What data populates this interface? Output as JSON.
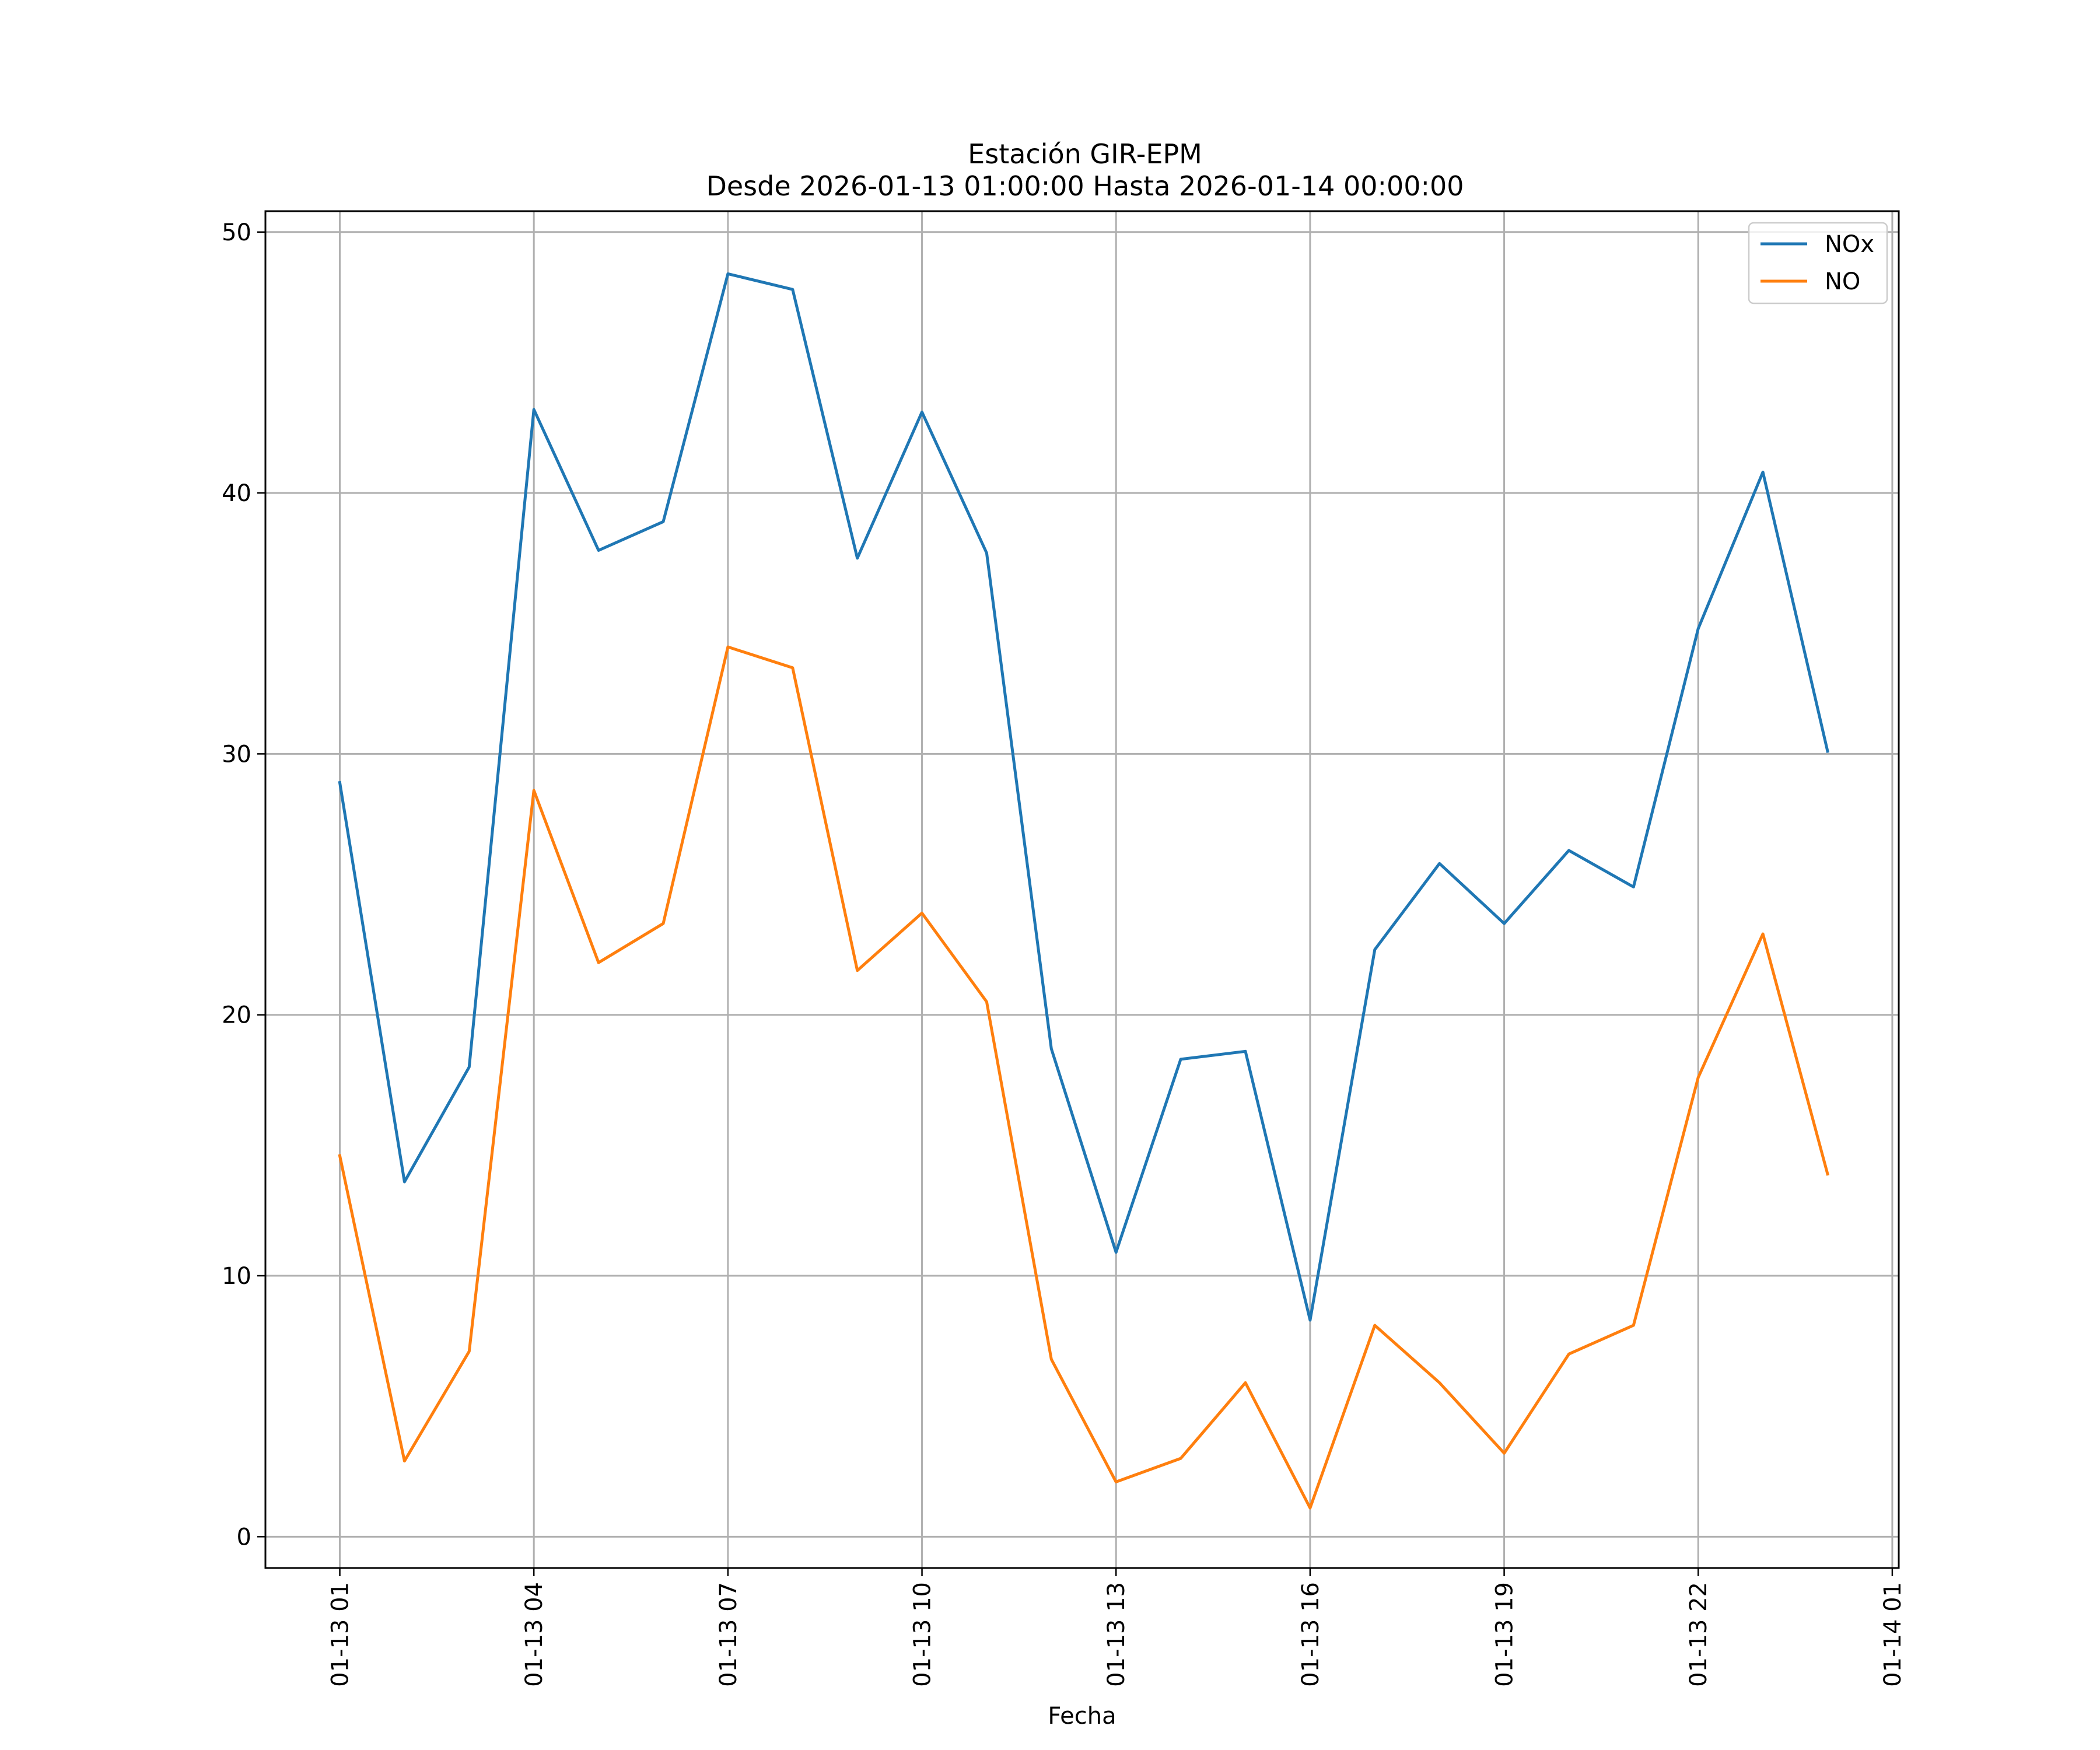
{
  "chart_data": {
    "type": "line",
    "title": "Estación GIR-EPM",
    "subtitle": "Desde 2026-01-13 01:00:00 Hasta 2026-01-14 00:00:00",
    "xlabel": "Fecha",
    "ylabel": "",
    "grid": true,
    "legend_position": "top-right",
    "x_hours": [
      1,
      2,
      3,
      4,
      5,
      6,
      7,
      8,
      9,
      10,
      11,
      12,
      13,
      14,
      15,
      16,
      17,
      18,
      19,
      20,
      21,
      22,
      23,
      24
    ],
    "xlim": [
      -0.15,
      25.1
    ],
    "ylim": [
      -1.2,
      50.8
    ],
    "xticks": [
      {
        "hour": 1,
        "label": "01-13 01"
      },
      {
        "hour": 4,
        "label": "01-13 04"
      },
      {
        "hour": 7,
        "label": "01-13 07"
      },
      {
        "hour": 10,
        "label": "01-13 10"
      },
      {
        "hour": 13,
        "label": "01-13 13"
      },
      {
        "hour": 16,
        "label": "01-13 16"
      },
      {
        "hour": 19,
        "label": "01-13 19"
      },
      {
        "hour": 22,
        "label": "01-13 22"
      },
      {
        "hour": 25,
        "label": "01-14 01"
      }
    ],
    "yticks": [
      {
        "value": 0,
        "label": "0"
      },
      {
        "value": 10,
        "label": "10"
      },
      {
        "value": 20,
        "label": "20"
      },
      {
        "value": 30,
        "label": "30"
      },
      {
        "value": 40,
        "label": "40"
      },
      {
        "value": 50,
        "label": "50"
      }
    ],
    "series": [
      {
        "name": "NOx",
        "color": "#1f77b4",
        "values": [
          28.9,
          13.6,
          18.0,
          43.2,
          37.8,
          38.9,
          48.4,
          47.8,
          37.5,
          43.1,
          37.7,
          18.7,
          10.9,
          18.3,
          18.6,
          8.3,
          22.5,
          25.8,
          23.5,
          26.3,
          24.9,
          34.8,
          40.8,
          30.1
        ]
      },
      {
        "name": "NO",
        "color": "#ff7f0e",
        "values": [
          14.6,
          2.9,
          7.1,
          28.6,
          22.0,
          23.5,
          34.1,
          33.3,
          21.7,
          23.9,
          20.5,
          6.8,
          2.1,
          3.0,
          5.9,
          1.1,
          8.1,
          5.9,
          3.2,
          7.0,
          8.1,
          17.6,
          23.1,
          13.9
        ]
      }
    ]
  }
}
